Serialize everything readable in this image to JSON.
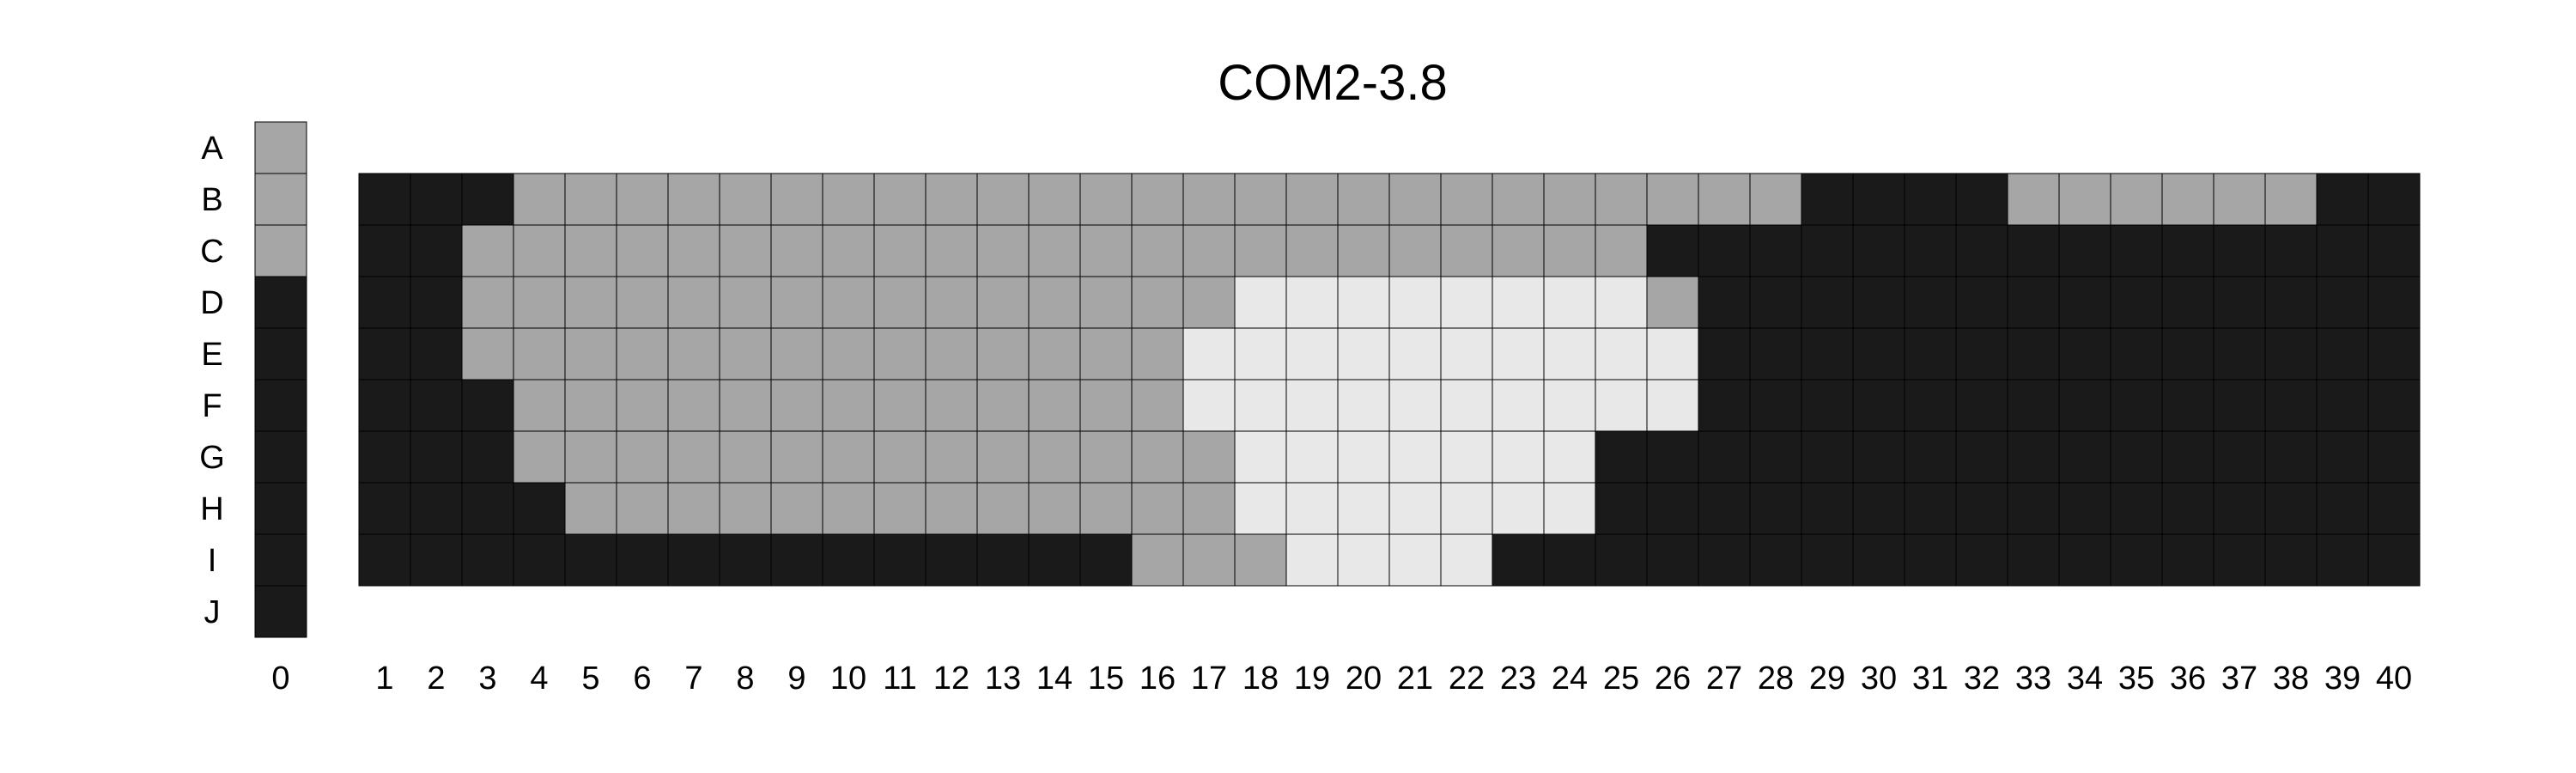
{
  "chart_data": {
    "type": "heatmap",
    "title": "COM2-3.8",
    "rows": [
      "A",
      "B",
      "C",
      "D",
      "E",
      "F",
      "G",
      "H",
      "I",
      "J"
    ],
    "columns": [
      "1",
      "2",
      "3",
      "4",
      "5",
      "6",
      "7",
      "8",
      "9",
      "10",
      "11",
      "12",
      "13",
      "14",
      "15",
      "16",
      "17",
      "18",
      "19",
      "20",
      "21",
      "22",
      "23",
      "24",
      "25",
      "26",
      "27",
      "28",
      "29",
      "30",
      "31",
      "32",
      "33",
      "34",
      "35",
      "36",
      "37",
      "38",
      "39",
      "40"
    ],
    "column_rows": [
      "B",
      "C",
      "D",
      "E",
      "F",
      "G",
      "H",
      "I"
    ],
    "reference_column": {
      "label": "0",
      "cells": [
        "A",
        "B",
        "C",
        "D",
        "E",
        "F",
        "G",
        "H",
        "I",
        "J"
      ],
      "levels": [
        1,
        1,
        1,
        0,
        0,
        0,
        0,
        0,
        0,
        0
      ]
    },
    "grid": [
      "0001111111111111111111111111000011111100",
      "0011111111111111111111111000000000000000",
      "0011111111111111122222222100000000000000",
      "0011111111111111222222222200000000000000",
      "0001111111111111222222222200000000000000",
      "0001111111111111122222220000000000000000",
      "0000111111111111122222220000000000000000",
      "0000000000000001112222000000000000000000"
    ],
    "levels": {
      "0": {
        "color": "#1a1a1a"
      },
      "1": {
        "color": "#a6a6a6"
      },
      "2": {
        "color": "#e8e8e8"
      }
    },
    "xlabel": "",
    "ylabel": "",
    "grid_lines": true,
    "legend": "none"
  }
}
